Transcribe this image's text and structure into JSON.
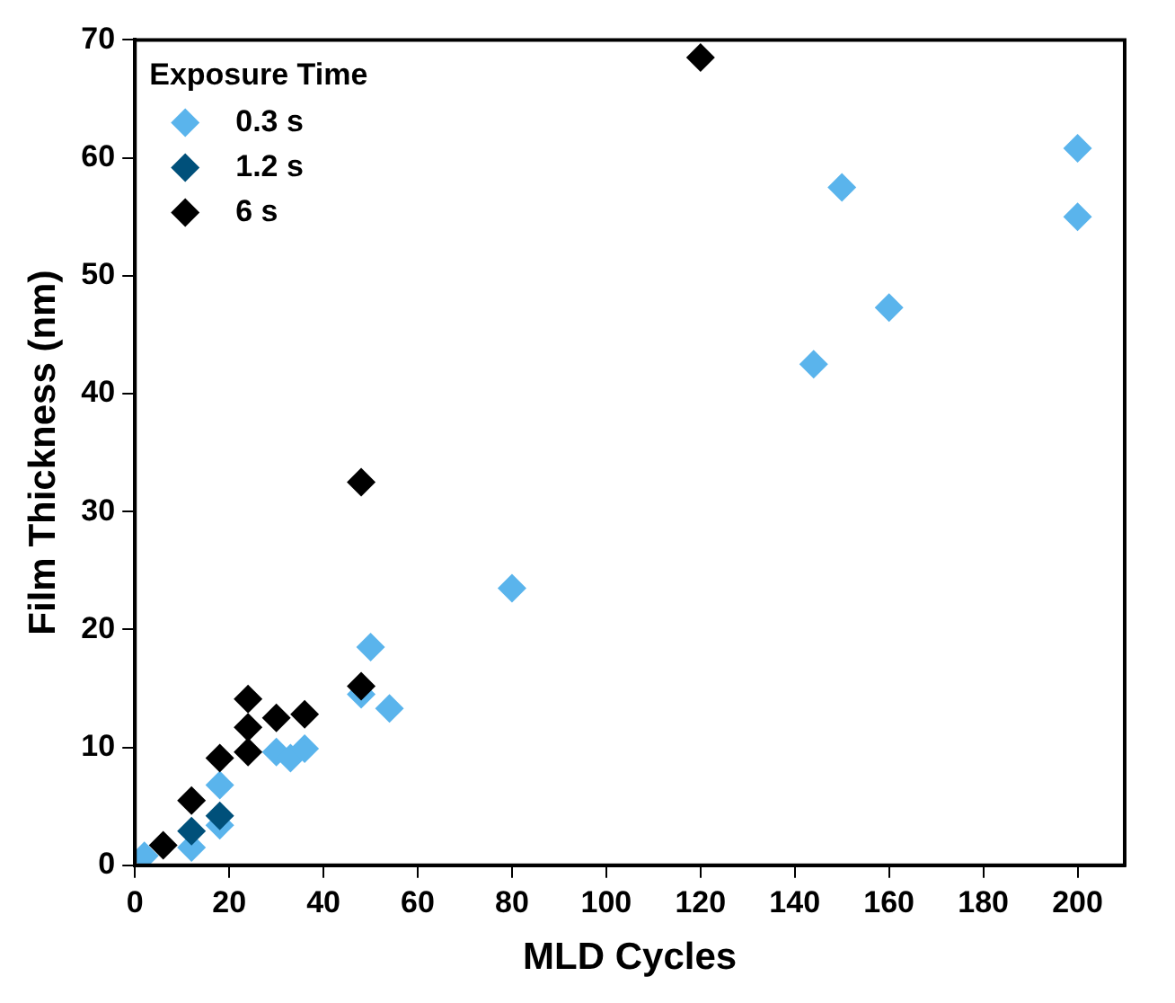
{
  "chart_data": {
    "type": "scatter",
    "xlabel": "MLD Cycles",
    "ylabel": "Film Thickness (nm)",
    "legend_title": "Exposure Time",
    "legend": "top left",
    "marker": "diamond",
    "grid": false,
    "xlim": [
      0,
      210
    ],
    "xticks": [
      0,
      20,
      40,
      60,
      80,
      100,
      120,
      140,
      160,
      180,
      200
    ],
    "ylim": [
      0,
      70
    ],
    "yticks": [
      0,
      10,
      20,
      30,
      40,
      50,
      60,
      70
    ],
    "series": [
      {
        "name": "0.3 s",
        "color": "#5ab4ec",
        "x": [
          2,
          12,
          18,
          18,
          30,
          33,
          36,
          48,
          50,
          54,
          80,
          144,
          150,
          160,
          200,
          200
        ],
        "values": [
          0.8,
          1.5,
          3.4,
          6.8,
          9.6,
          9.1,
          9.9,
          14.5,
          18.5,
          13.3,
          23.5,
          42.5,
          57.5,
          47.3,
          60.8,
          55
        ]
      },
      {
        "name": "1.2 s",
        "color": "#00507a",
        "x": [
          12,
          18
        ],
        "values": [
          2.9,
          4.2
        ]
      },
      {
        "name": "6 s",
        "color": "#000000",
        "x": [
          6,
          12,
          18,
          24,
          24,
          24,
          30,
          36,
          48,
          48,
          120
        ],
        "values": [
          1.7,
          5.5,
          9.1,
          14.1,
          11.7,
          9.6,
          12.5,
          12.8,
          15.2,
          32.5,
          68.5
        ]
      }
    ]
  }
}
